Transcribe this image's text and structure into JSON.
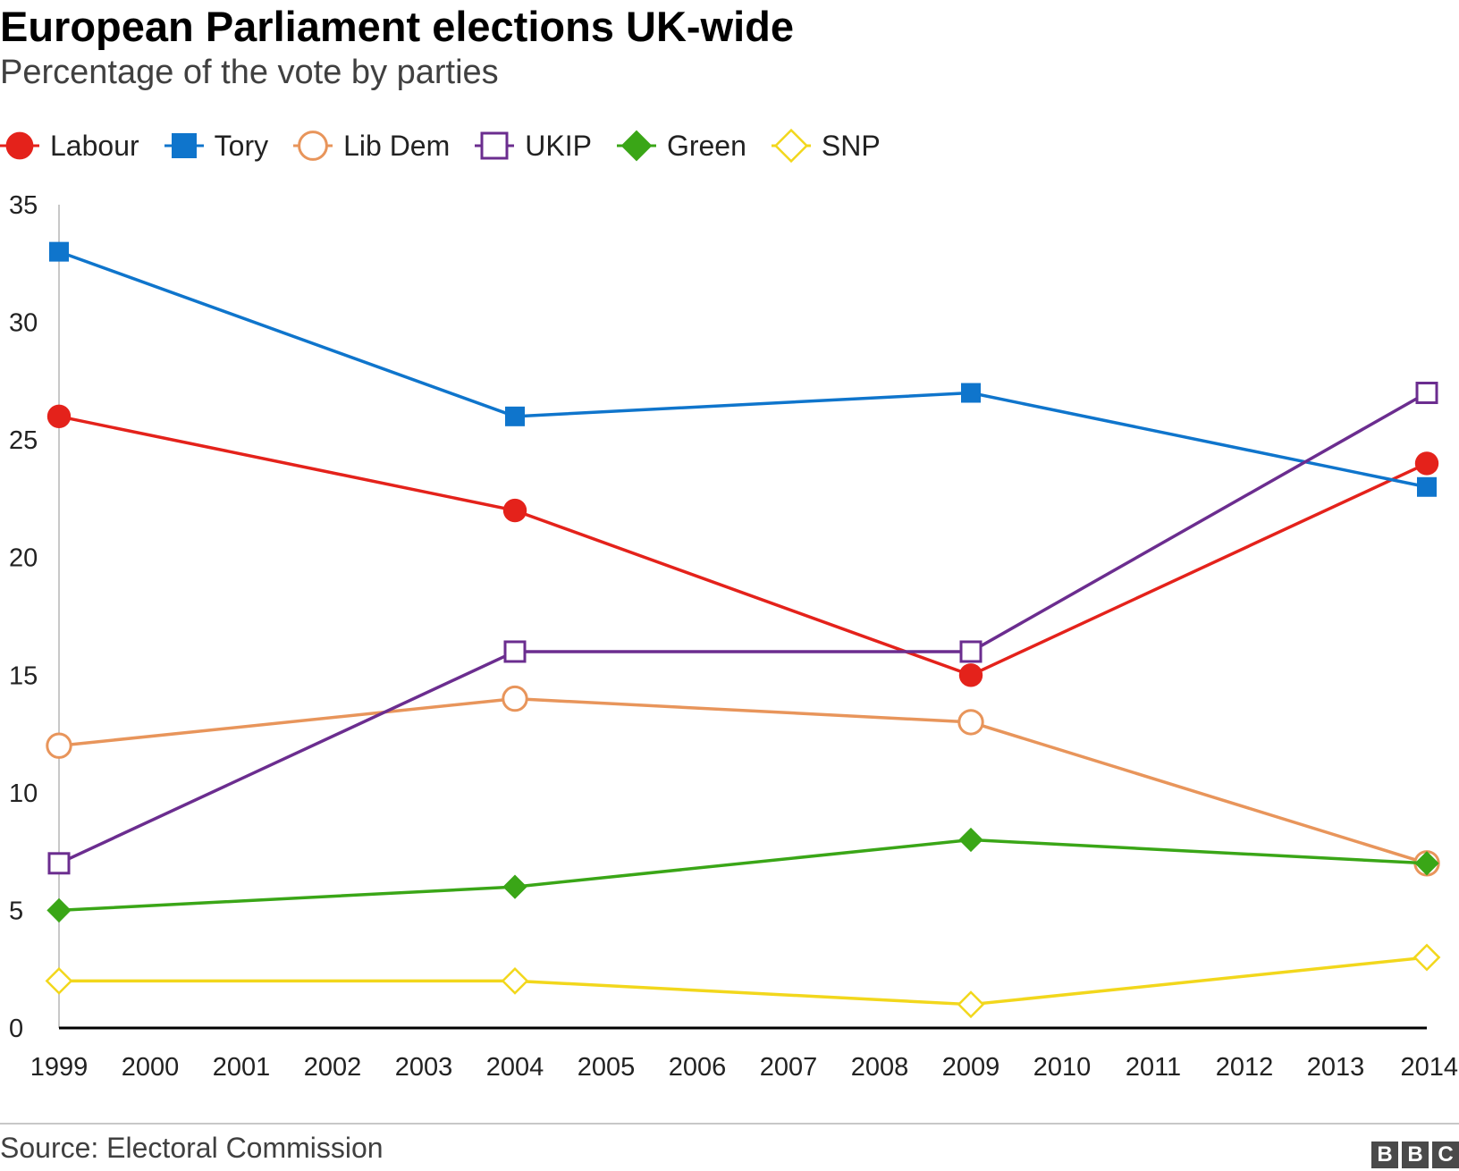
{
  "chart_data": {
    "type": "line",
    "title": "European Parliament elections UK-wide",
    "subtitle": "Percentage of the vote by parties",
    "source": "Source: Electoral Commission",
    "logo": [
      "B",
      "B",
      "C"
    ],
    "x_ticks": [
      "1999",
      "2000",
      "2001",
      "2002",
      "2003",
      "2004",
      "2005",
      "2006",
      "2007",
      "2008",
      "2009",
      "2010",
      "2011",
      "2012",
      "2013",
      "2014"
    ],
    "y_ticks": [
      "0",
      "5",
      "10",
      "15",
      "20",
      "25",
      "30",
      "35"
    ],
    "xlim": [
      1999,
      2014
    ],
    "ylim": [
      0,
      35
    ],
    "legend_position": "top-left",
    "series": [
      {
        "name": "Labour",
        "color": "#e4221b",
        "marker": "circle",
        "filled": true,
        "x": [
          1999,
          2004,
          2009,
          2014
        ],
        "values": [
          26,
          22,
          15,
          24
        ]
      },
      {
        "name": "Tory",
        "color": "#0f75cc",
        "marker": "square",
        "filled": true,
        "x": [
          1999,
          2004,
          2009,
          2014
        ],
        "values": [
          33,
          26,
          27,
          23
        ]
      },
      {
        "name": "Lib Dem",
        "color": "#e8955b",
        "marker": "circle",
        "filled": false,
        "x": [
          1999,
          2004,
          2009,
          2014
        ],
        "values": [
          12,
          14,
          13,
          7
        ]
      },
      {
        "name": "UKIP",
        "color": "#6b2d8f",
        "marker": "square",
        "filled": false,
        "x": [
          1999,
          2004,
          2009,
          2014
        ],
        "values": [
          7,
          16,
          16,
          27
        ]
      },
      {
        "name": "Green",
        "color": "#3aa617",
        "marker": "diamond",
        "filled": true,
        "x": [
          1999,
          2004,
          2009,
          2014
        ],
        "values": [
          5,
          6,
          8,
          7
        ]
      },
      {
        "name": "SNP",
        "color": "#f2d71c",
        "marker": "diamond",
        "filled": false,
        "x": [
          1999,
          2004,
          2009,
          2014
        ],
        "values": [
          2,
          2,
          1,
          3
        ]
      }
    ]
  }
}
